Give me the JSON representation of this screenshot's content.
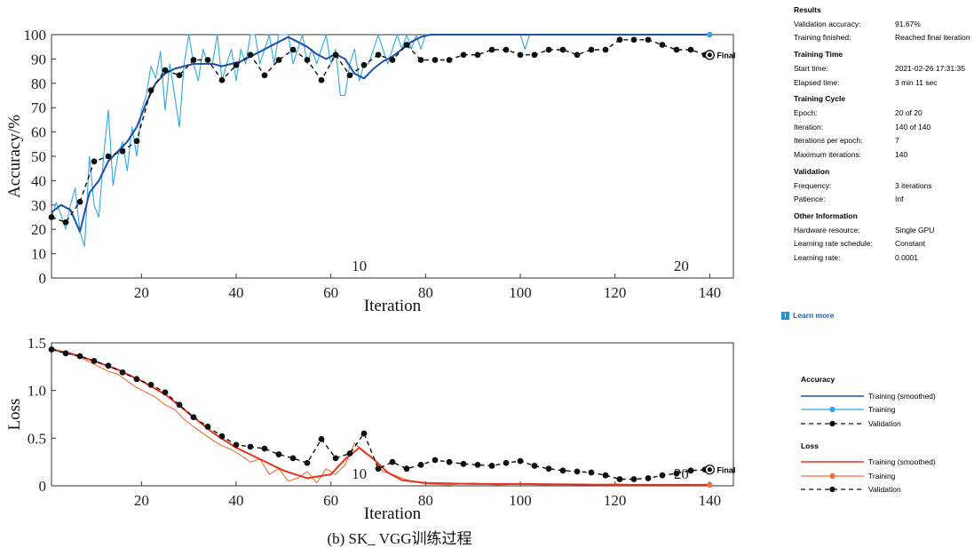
{
  "caption": "(b) SK_ VGG训练过程",
  "colors": {
    "acc_smoothed": "#1f4fa8",
    "acc_training": "#2ea8e6",
    "loss_smoothed": "#e8321c",
    "loss_training": "#f0703a",
    "validation": "#111111",
    "axis": "#333333"
  },
  "info": {
    "results": {
      "heading": "Results",
      "rows": [
        {
          "label": "Validation accuracy:",
          "value": "91.67%"
        },
        {
          "label": "Training finished:",
          "value": "Reached final iteration"
        }
      ]
    },
    "training_time": {
      "heading": "Training Time",
      "rows": [
        {
          "label": "Start time:",
          "value": "2021-02-26 17:31:35"
        },
        {
          "label": "Elapsed time:",
          "value": "3 min 11 sec"
        }
      ]
    },
    "training_cycle": {
      "heading": "Training Cycle",
      "rows": [
        {
          "label": "Epoch:",
          "value": "20 of 20"
        },
        {
          "label": "Iteration:",
          "value": "140 of 140"
        },
        {
          "label": "Iterations per epoch:",
          "value": "7"
        },
        {
          "label": "Maximum iterations:",
          "value": "140"
        }
      ]
    },
    "validation": {
      "heading": "Validation",
      "rows": [
        {
          "label": "Frequency:",
          "value": "3 iterations"
        },
        {
          "label": "Patience:",
          "value": "Inf"
        }
      ]
    },
    "other": {
      "heading": "Other Information",
      "rows": [
        {
          "label": "Hardware resource:",
          "value": "Single GPU"
        },
        {
          "label": "Learning rate schedule:",
          "value": "Constant"
        },
        {
          "label": "Learning rate:",
          "value": "0.0001"
        }
      ]
    },
    "learn_more": "Learn more",
    "learn_icon": "i"
  },
  "legend": {
    "accuracy": {
      "heading": "Accuracy",
      "items": [
        {
          "label": "Training (smoothed)"
        },
        {
          "label": "Training"
        },
        {
          "label": "Validation"
        }
      ]
    },
    "loss": {
      "heading": "Loss",
      "items": [
        {
          "label": "Training (smoothed)"
        },
        {
          "label": "Training"
        },
        {
          "label": "Validation"
        }
      ]
    }
  },
  "chart_data": [
    {
      "type": "line",
      "id": "accuracy",
      "xlabel": "Iteration",
      "ylabel": "Accuracy/%",
      "xlim": [
        1,
        145
      ],
      "ylim": [
        0,
        100
      ],
      "xticks": [
        20,
        40,
        60,
        80,
        100,
        120,
        140
      ],
      "yticks": [
        0,
        10,
        20,
        30,
        40,
        50,
        60,
        70,
        80,
        90,
        100
      ],
      "grid": false,
      "epoch_labels": [
        {
          "x": 66,
          "text": "10"
        },
        {
          "x": 134,
          "text": "20"
        }
      ],
      "final_label": "Final",
      "series": [
        {
          "name": "Training",
          "x": [
            1,
            2,
            3,
            4,
            5,
            6,
            7,
            8,
            9,
            10,
            11,
            12,
            13,
            14,
            15,
            16,
            17,
            18,
            19,
            20,
            21,
            22,
            23,
            24,
            25,
            26,
            27,
            28,
            29,
            30,
            31,
            32,
            33,
            34,
            35,
            36,
            37,
            38,
            39,
            40,
            41,
            42,
            43,
            44,
            45,
            46,
            47,
            48,
            49,
            50,
            51,
            52,
            53,
            54,
            55,
            56,
            57,
            58,
            59,
            60,
            61,
            62,
            63,
            64,
            65,
            66,
            67,
            68,
            69,
            70,
            71,
            72,
            73,
            74,
            75,
            76,
            77,
            78,
            79,
            80,
            81,
            82,
            83,
            84,
            85,
            86,
            87,
            88,
            89,
            90,
            91,
            92,
            93,
            94,
            95,
            96,
            97,
            98,
            99,
            100,
            101,
            102,
            103,
            104,
            105,
            106,
            107,
            108,
            109,
            110,
            111,
            112,
            113,
            114,
            115,
            116,
            117,
            118,
            119,
            120,
            121,
            122,
            123,
            124,
            125,
            126,
            127,
            128,
            129,
            130,
            131,
            132,
            133,
            134,
            135,
            136,
            137,
            138,
            139,
            140
          ],
          "y": [
            25,
            31,
            26,
            20,
            30,
            37,
            19,
            13,
            50,
            30,
            25,
            50,
            69,
            38,
            50,
            56,
            44,
            62,
            50,
            69,
            75,
            87,
            82,
            93,
            69,
            88,
            75,
            62,
            88,
            100,
            88,
            81,
            94,
            88,
            88,
            100,
            81,
            88,
            94,
            81,
            94,
            88,
            100,
            100,
            88,
            94,
            100,
            88,
            100,
            100,
            100,
            88,
            94,
            100,
            88,
            94,
            88,
            94,
            100,
            88,
            94,
            75,
            75,
            88,
            94,
            81,
            88,
            88,
            94,
            100,
            94,
            88,
            94,
            100,
            94,
            100,
            94,
            100,
            94,
            100,
            100,
            100,
            100,
            100,
            100,
            100,
            100,
            100,
            100,
            100,
            100,
            100,
            100,
            100,
            100,
            100,
            100,
            100,
            100,
            100,
            94,
            100,
            100,
            100,
            100,
            100,
            100,
            100,
            100,
            100,
            100,
            100,
            100,
            100,
            100,
            100,
            100,
            100,
            100,
            100,
            100,
            100,
            100,
            100,
            100,
            100,
            100,
            100,
            100,
            100,
            100,
            100,
            100,
            100,
            100,
            100,
            100,
            100,
            100,
            100
          ]
        },
        {
          "name": "Training (smoothed)",
          "x": [
            1,
            3,
            5,
            7,
            9,
            11,
            13,
            15,
            17,
            19,
            21,
            23,
            25,
            27,
            29,
            31,
            33,
            35,
            37,
            39,
            41,
            43,
            45,
            47,
            49,
            51,
            53,
            55,
            57,
            59,
            61,
            63,
            65,
            67,
            69,
            71,
            73,
            75,
            77,
            79,
            81,
            85,
            90,
            95,
            100,
            110,
            120,
            130,
            140
          ],
          "y": [
            27,
            30,
            28,
            19,
            35,
            40,
            48,
            52,
            56,
            62,
            72,
            80,
            84,
            86,
            87,
            88,
            88,
            88,
            87,
            88,
            89,
            91,
            93,
            95,
            97,
            99,
            97,
            95,
            92,
            90,
            92,
            90,
            84,
            82,
            86,
            89,
            91,
            94,
            97,
            99,
            100,
            100,
            100,
            100,
            100,
            100,
            100,
            100,
            100
          ]
        },
        {
          "name": "Validation",
          "x": [
            1,
            4,
            7,
            10,
            13,
            16,
            19,
            22,
            25,
            28,
            31,
            34,
            37,
            40,
            43,
            46,
            49,
            52,
            55,
            58,
            61,
            64,
            67,
            70,
            73,
            76,
            79,
            82,
            85,
            88,
            91,
            94,
            97,
            100,
            103,
            106,
            109,
            112,
            115,
            118,
            121,
            124,
            127,
            130,
            133,
            136,
            139,
            140
          ],
          "y": [
            25,
            22.9,
            31.3,
            47.9,
            50,
            52.1,
            56.3,
            77.1,
            85.4,
            83.3,
            89.6,
            89.6,
            81.3,
            87.5,
            91.7,
            83.3,
            89.6,
            93.8,
            89.6,
            81.3,
            91.7,
            83.3,
            87.5,
            91.7,
            89.6,
            95.8,
            89.6,
            89.6,
            89.6,
            91.7,
            91.7,
            93.8,
            93.8,
            91.7,
            91.7,
            93.8,
            93.8,
            91.7,
            93.8,
            93.8,
            97.9,
            97.9,
            97.9,
            95.8,
            93.8,
            93.8,
            91.7,
            91.67
          ]
        }
      ]
    },
    {
      "type": "line",
      "id": "loss",
      "xlabel": "Iteration",
      "ylabel": "Loss",
      "xlim": [
        1,
        145
      ],
      "ylim": [
        0,
        1.5
      ],
      "xticks": [
        20,
        40,
        60,
        80,
        100,
        120,
        140
      ],
      "yticks": [
        0,
        0.5,
        1.0,
        1.5
      ],
      "ytick_labels": [
        "0",
        "0.5",
        "1.0",
        "1.5"
      ],
      "grid": false,
      "epoch_labels": [
        {
          "x": 66,
          "text": "10"
        },
        {
          "x": 134,
          "text": "20"
        }
      ],
      "final_label": "Final",
      "series": [
        {
          "name": "Training",
          "x": [
            1,
            3,
            5,
            7,
            9,
            11,
            13,
            15,
            17,
            19,
            21,
            23,
            25,
            27,
            29,
            31,
            33,
            35,
            37,
            39,
            41,
            43,
            45,
            47,
            49,
            51,
            53,
            55,
            57,
            59,
            61,
            63,
            65,
            67,
            69,
            71,
            73,
            75,
            77,
            79,
            81,
            85,
            90,
            95,
            100,
            105,
            110,
            115,
            120,
            125,
            130,
            135,
            140
          ],
          "y": [
            1.45,
            1.41,
            1.38,
            1.35,
            1.3,
            1.25,
            1.2,
            1.17,
            1.1,
            1.03,
            0.98,
            0.93,
            0.85,
            0.8,
            0.7,
            0.62,
            0.55,
            0.48,
            0.42,
            0.38,
            0.32,
            0.25,
            0.28,
            0.12,
            0.18,
            0.05,
            0.08,
            0.15,
            0.03,
            0.18,
            0.12,
            0.22,
            0.45,
            0.35,
            0.28,
            0.15,
            0.12,
            0.08,
            0.05,
            0.03,
            0.02,
            0.01,
            0.03,
            0.01,
            0.02,
            0.01,
            0.02,
            0.01,
            0.02,
            0.01,
            0.01,
            0.01,
            0.01
          ]
        },
        {
          "name": "Training (smoothed)",
          "x": [
            1,
            5,
            10,
            15,
            20,
            25,
            30,
            35,
            40,
            45,
            50,
            55,
            60,
            63,
            66,
            69,
            72,
            75,
            80,
            90,
            100,
            110,
            120,
            130,
            140
          ],
          "y": [
            1.43,
            1.39,
            1.31,
            1.22,
            1.1,
            0.96,
            0.76,
            0.56,
            0.4,
            0.28,
            0.16,
            0.08,
            0.12,
            0.28,
            0.4,
            0.28,
            0.14,
            0.06,
            0.03,
            0.02,
            0.02,
            0.015,
            0.01,
            0.01,
            0.01
          ]
        },
        {
          "name": "Validation",
          "x": [
            1,
            4,
            7,
            10,
            13,
            16,
            19,
            22,
            25,
            28,
            31,
            34,
            37,
            40,
            43,
            46,
            49,
            52,
            55,
            58,
            61,
            64,
            67,
            70,
            73,
            76,
            79,
            82,
            85,
            88,
            91,
            94,
            97,
            100,
            103,
            106,
            109,
            112,
            115,
            118,
            121,
            124,
            127,
            130,
            133,
            136,
            139,
            140
          ],
          "y": [
            1.43,
            1.39,
            1.36,
            1.31,
            1.26,
            1.19,
            1.12,
            1.06,
            0.98,
            0.85,
            0.72,
            0.62,
            0.52,
            0.43,
            0.41,
            0.39,
            0.33,
            0.29,
            0.24,
            0.49,
            0.29,
            0.34,
            0.55,
            0.18,
            0.25,
            0.18,
            0.22,
            0.27,
            0.25,
            0.23,
            0.22,
            0.21,
            0.24,
            0.26,
            0.21,
            0.18,
            0.16,
            0.15,
            0.14,
            0.11,
            0.07,
            0.07,
            0.08,
            0.11,
            0.13,
            0.16,
            0.17,
            0.17
          ]
        }
      ]
    }
  ]
}
